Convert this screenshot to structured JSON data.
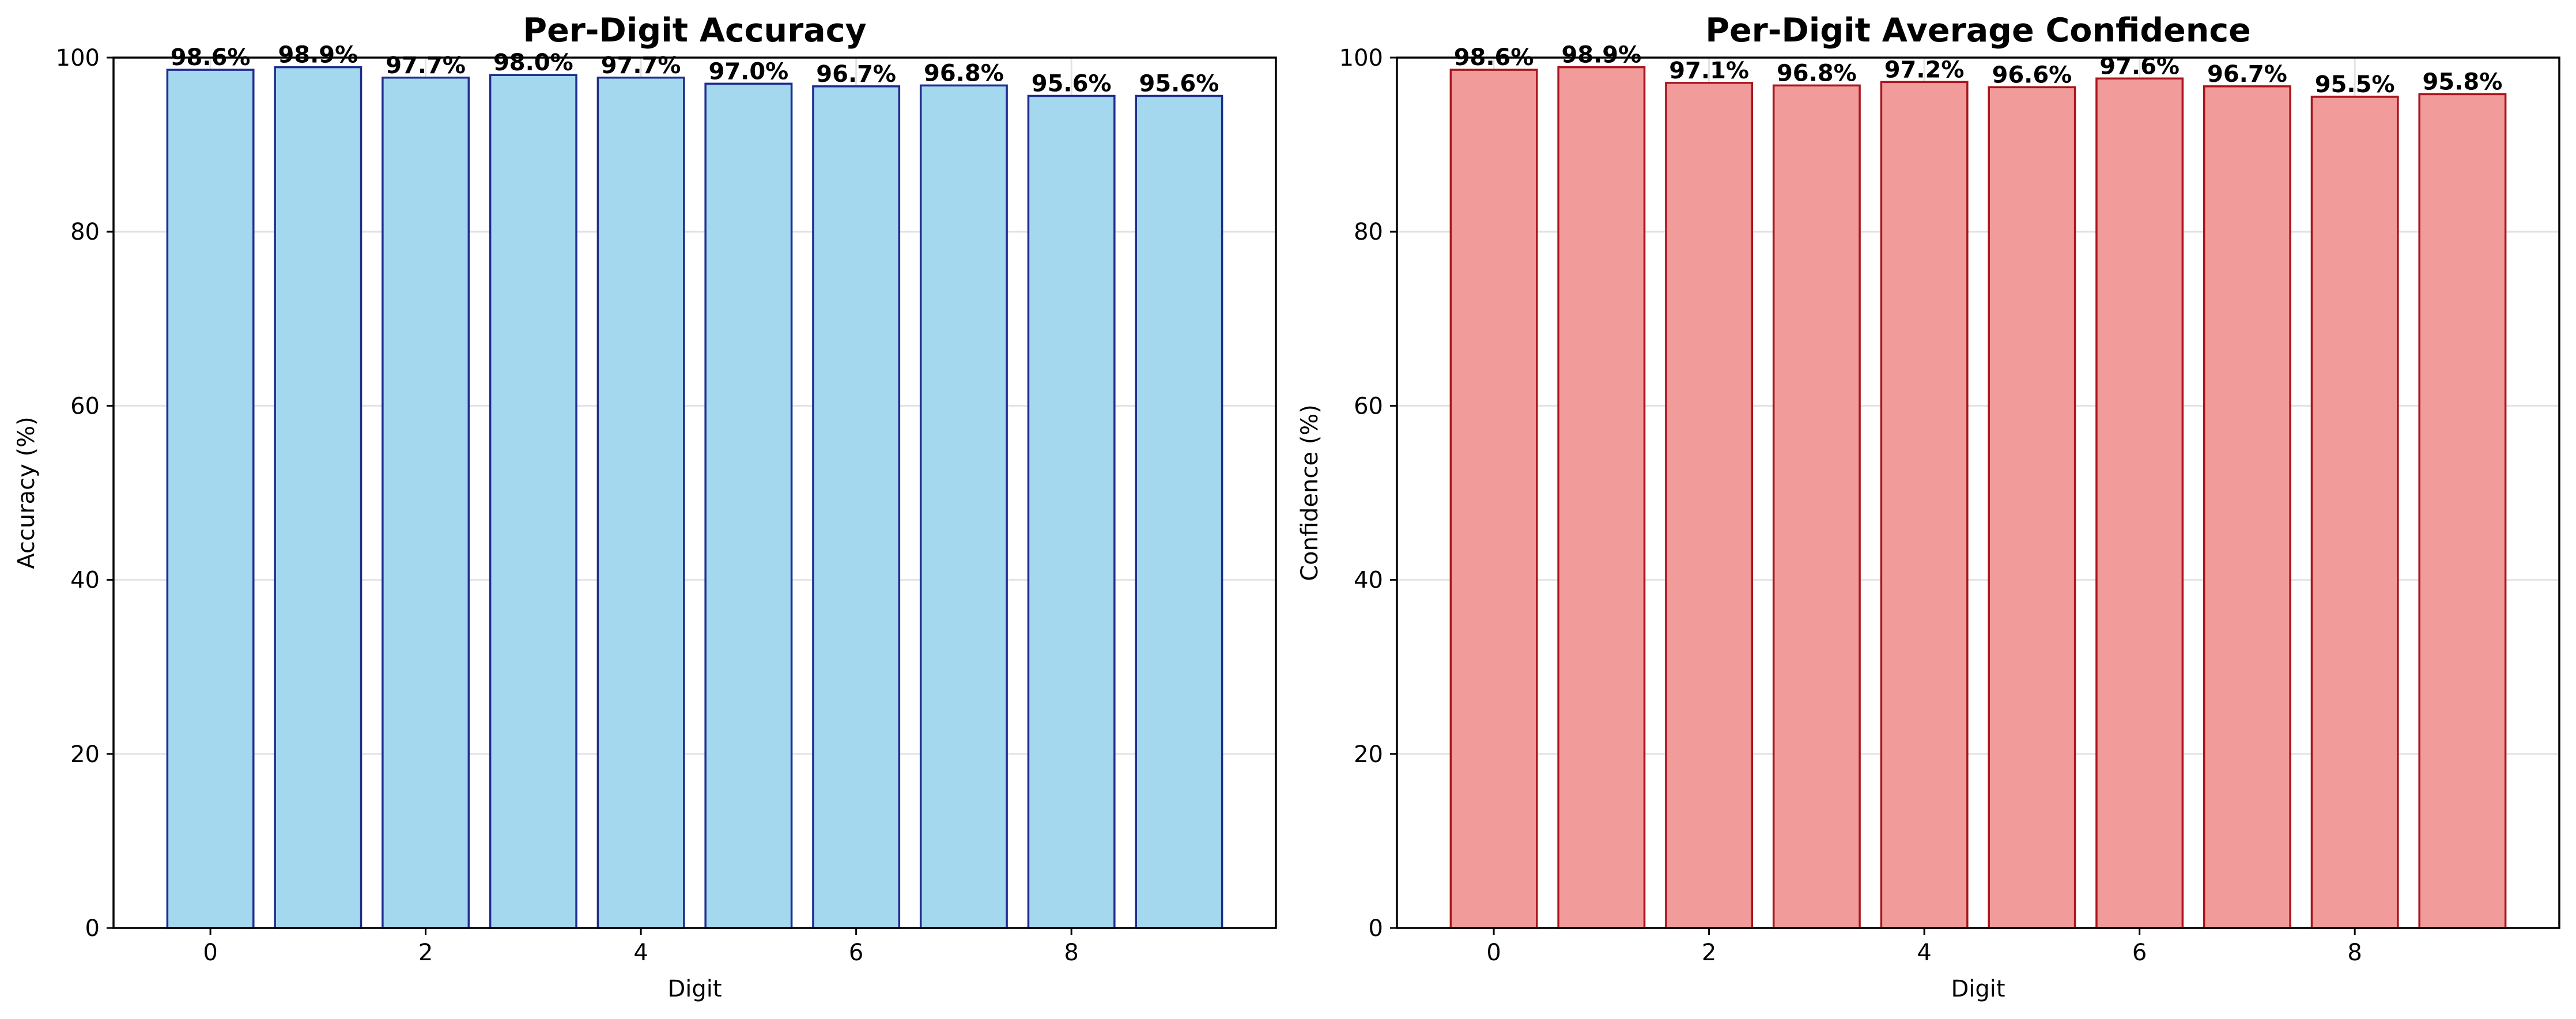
{
  "chart_data": [
    {
      "type": "bar",
      "title": "Per-Digit Accuracy",
      "xlabel": "Digit",
      "ylabel": "Accuracy (%)",
      "categories": [
        "0",
        "1",
        "2",
        "3",
        "4",
        "5",
        "6",
        "7",
        "8",
        "9"
      ],
      "values": [
        98.6,
        98.9,
        97.7,
        98.0,
        97.7,
        97.0,
        96.7,
        96.8,
        95.6,
        95.6
      ],
      "data_labels": [
        "98.6%",
        "98.9%",
        "97.7%",
        "98.0%",
        "97.7%",
        "97.0%",
        "96.7%",
        "96.8%",
        "95.6%",
        "95.6%"
      ],
      "xticks": [
        "0",
        "2",
        "4",
        "6",
        "8"
      ],
      "yticks": [
        "0",
        "20",
        "40",
        "60",
        "80",
        "100"
      ],
      "xlim": [
        -0.9,
        9.9
      ],
      "ylim": [
        0,
        100
      ],
      "grid": true,
      "bar_color": "#a3d8ee",
      "edge_color": "#1f2d8f"
    },
    {
      "type": "bar",
      "title": "Per-Digit Average Confidence",
      "xlabel": "Digit",
      "ylabel": "Confidence (%)",
      "categories": [
        "0",
        "1",
        "2",
        "3",
        "4",
        "5",
        "6",
        "7",
        "8",
        "9"
      ],
      "values": [
        98.6,
        98.9,
        97.1,
        96.8,
        97.2,
        96.6,
        97.6,
        96.7,
        95.5,
        95.8
      ],
      "data_labels": [
        "98.6%",
        "98.9%",
        "97.1%",
        "96.8%",
        "97.2%",
        "96.6%",
        "97.6%",
        "96.7%",
        "95.5%",
        "95.8%"
      ],
      "xticks": [
        "0",
        "2",
        "4",
        "6",
        "8"
      ],
      "yticks": [
        "0",
        "20",
        "40",
        "60",
        "80",
        "100"
      ],
      "xlim": [
        -0.9,
        9.9
      ],
      "ylim": [
        0,
        100
      ],
      "grid": true,
      "bar_color": "#f29b9b",
      "edge_color": "#a8161c"
    }
  ]
}
